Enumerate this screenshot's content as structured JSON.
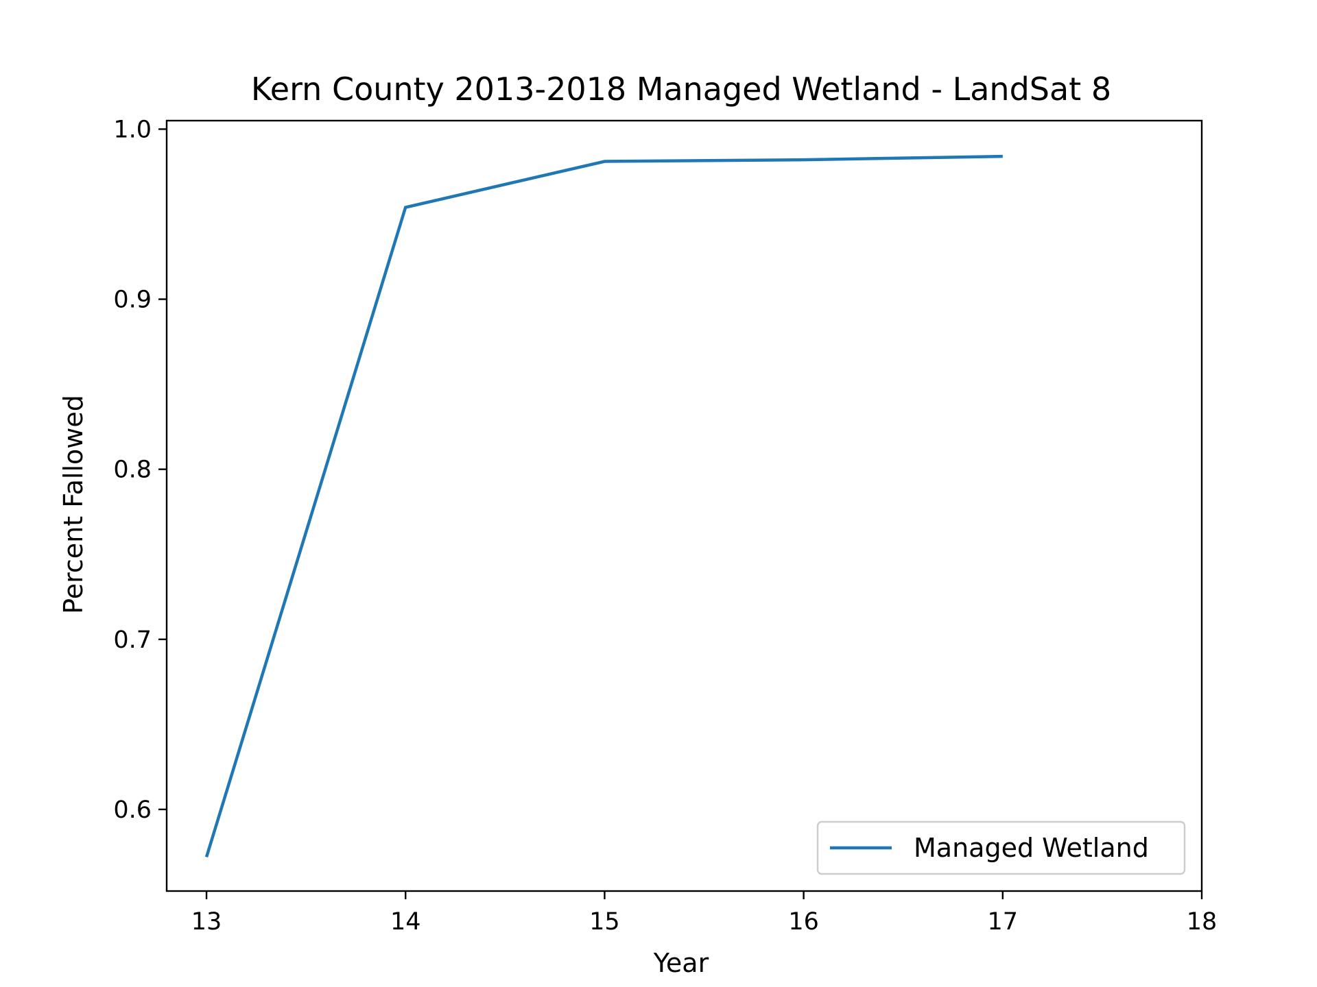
{
  "chart_data": {
    "type": "line",
    "title": "Kern County 2013-2018 Managed Wetland - LandSat 8",
    "xlabel": "Year",
    "ylabel": "Percent Fallowed",
    "xlim": [
      12.8,
      18
    ],
    "ylim": [
      0.552,
      1.005
    ],
    "x_ticks": [
      "13",
      "14",
      "15",
      "16",
      "17",
      "18"
    ],
    "y_ticks": [
      "0.6",
      "0.7",
      "0.8",
      "0.9",
      "1.0"
    ],
    "grid": false,
    "legend_position": "lower-right",
    "series": [
      {
        "name": "Managed Wetland",
        "color": "#1f77b4",
        "x": [
          13,
          14,
          15,
          16,
          17
        ],
        "y": [
          0.572,
          0.954,
          0.981,
          0.982,
          0.984
        ]
      }
    ]
  }
}
